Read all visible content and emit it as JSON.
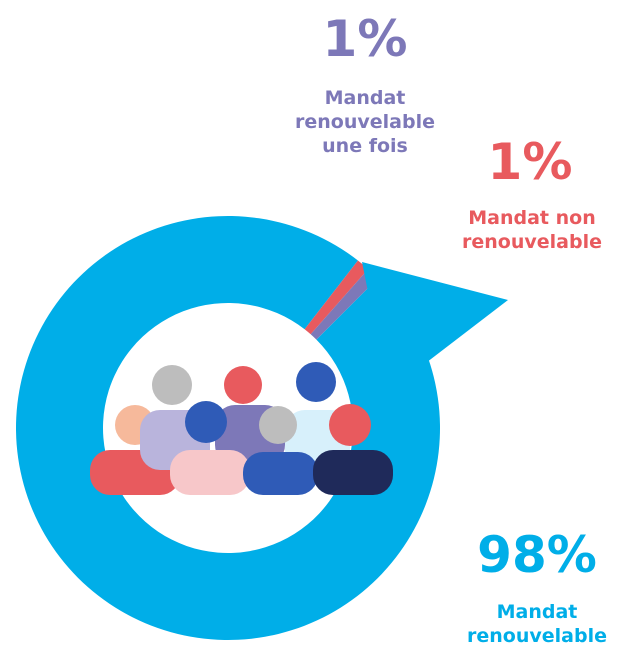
{
  "chart_data": {
    "type": "pie",
    "categories": [
      "Mandat renouvelable",
      "Mandat non renouvelable",
      "Mandat renouvelable une fois"
    ],
    "values": [
      98,
      1,
      1
    ],
    "value_labels": [
      "98%",
      "1%",
      "1%"
    ],
    "colors": [
      "#00aee8",
      "#e85a5e",
      "#7d78b8"
    ]
  }
}
